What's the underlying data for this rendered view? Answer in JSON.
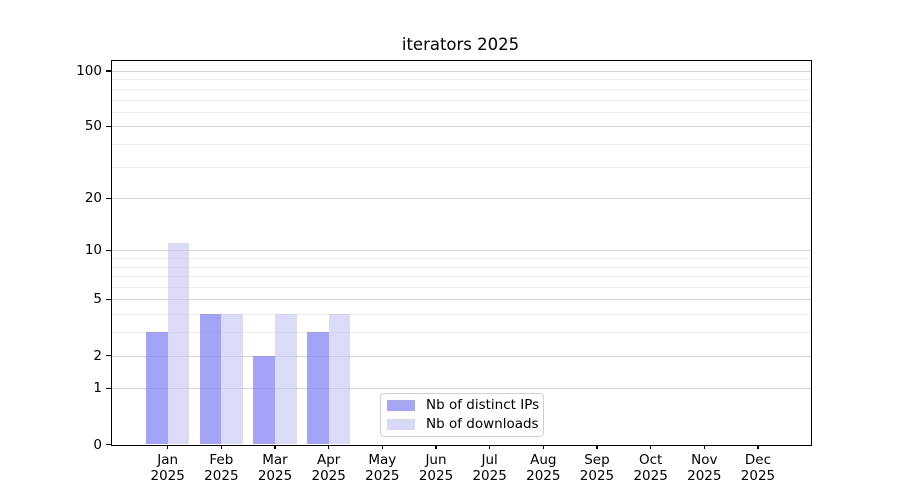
{
  "chart_data": {
    "type": "bar",
    "title": "iterators 2025",
    "year_label": "2025",
    "categories": [
      "Jan",
      "Feb",
      "Mar",
      "Apr",
      "May",
      "Jun",
      "Jul",
      "Aug",
      "Sep",
      "Oct",
      "Nov",
      "Dec"
    ],
    "series": [
      {
        "name": "Nb of distinct IPs",
        "color": "#8c8cf5",
        "alpha": 0.8,
        "legend_color": "#a6a6f4",
        "values": [
          3,
          4,
          2,
          3,
          0,
          0,
          0,
          0,
          0,
          0,
          0,
          0
        ]
      },
      {
        "name": "Nb of downloads",
        "color": "#c8c8f3",
        "alpha": 0.65,
        "legend_color": "#d9d9f6",
        "values": [
          11,
          4,
          4,
          4,
          0,
          0,
          0,
          0,
          0,
          0,
          0,
          0
        ]
      }
    ],
    "scale": "log1p",
    "ylim": [
      0,
      114
    ],
    "y_major_ticks": [
      100,
      50,
      20,
      10,
      5,
      2,
      1,
      0
    ],
    "y_minor_ticks": [
      90,
      80,
      70,
      60,
      40,
      30,
      9,
      8,
      7,
      6,
      4,
      3
    ],
    "grid": "on",
    "legend_position": "inside-bottom-center"
  },
  "colors": {
    "grid_major": "#d3d3d3",
    "grid_minor": "#ececec",
    "axis_frame": "#000000",
    "legend_border": "#d0d0d0"
  }
}
